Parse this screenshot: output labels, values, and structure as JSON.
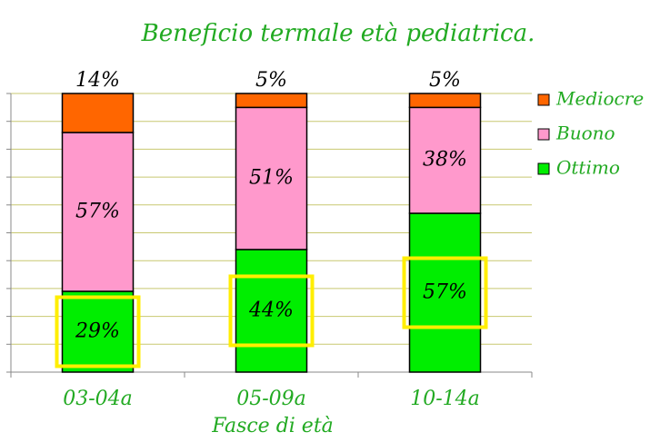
{
  "chart_data": {
    "type": "bar",
    "stacked": true,
    "title": "Beneficio termale età pediatrica.",
    "x_label": "Fasce di età",
    "categories": [
      "03-04a",
      "05-09a",
      "10-14a"
    ],
    "series": [
      {
        "name": "Ottimo",
        "color": "#00ee00",
        "values": [
          29,
          44,
          57
        ],
        "value_labels": [
          "29%",
          "44%",
          "57%"
        ]
      },
      {
        "name": "Buono",
        "color": "#ff99cc",
        "values": [
          57,
          51,
          38
        ],
        "value_labels": [
          "57%",
          "51%",
          "38%"
        ]
      },
      {
        "name": "Mediocre",
        "color": "#ff6600",
        "values": [
          14,
          5,
          5
        ],
        "value_labels": [
          "14%",
          "5%",
          "5%"
        ]
      }
    ],
    "ylim": [
      0,
      100
    ],
    "yticks": [
      0,
      10,
      20,
      30,
      40,
      50,
      60,
      70,
      80,
      90,
      100
    ],
    "grid": true,
    "legend": "right"
  }
}
